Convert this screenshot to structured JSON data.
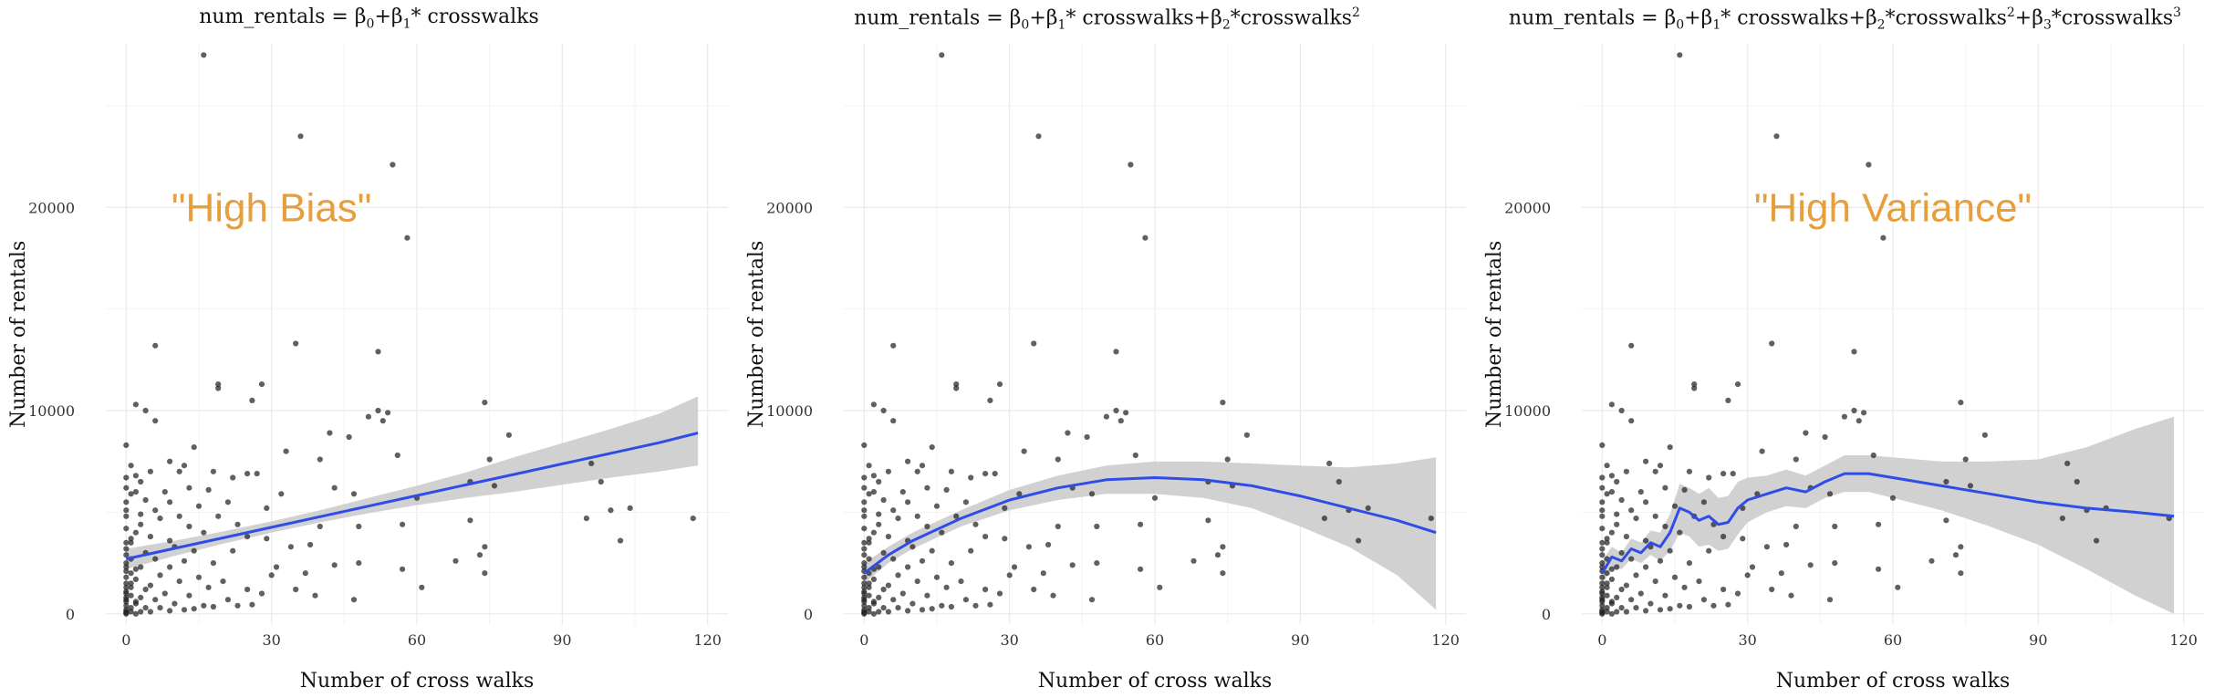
{
  "colors": {
    "line": "#2F4DE6",
    "ribbon": "#CFCFCF",
    "point": "#222222",
    "annotation": "#E69F3C",
    "grid": "#EBEBEB"
  },
  "chart_data": [
    {
      "type": "scatter",
      "title_parts": [
        "num_rentals = β",
        "0",
        "+β",
        "1",
        "* crosswalks"
      ],
      "xlabel": "Number of cross walks",
      "ylabel": "Number of rentals",
      "xlim": [
        0,
        120
      ],
      "ylim": [
        0,
        27500
      ],
      "xticks": [
        0,
        30,
        60,
        90,
        120
      ],
      "yticks": [
        0,
        10000,
        20000
      ],
      "grid": true,
      "annotation": {
        "text": "\"High Bias\"",
        "x": 30,
        "y": 20000
      },
      "fit": {
        "x": [
          0,
          10,
          20,
          30,
          40,
          50,
          60,
          70,
          80,
          90,
          100,
          110,
          118
        ],
        "y": [
          2700,
          3220,
          3740,
          4260,
          4780,
          5300,
          5820,
          6340,
          6860,
          7380,
          7900,
          8420,
          8900
        ],
        "lower": [
          2200,
          2850,
          3450,
          4000,
          4500,
          4950,
          5350,
          5700,
          6000,
          6350,
          6700,
          7000,
          7300
        ],
        "upper": [
          3200,
          3600,
          4050,
          4550,
          5100,
          5700,
          6300,
          6950,
          7700,
          8400,
          9100,
          9850,
          10700
        ]
      }
    },
    {
      "type": "scatter",
      "title_parts": [
        "num_rentals = β",
        "0",
        "+β",
        "1",
        "* crosswalks+β",
        "2",
        "*crosswalks",
        "2"
      ],
      "xlabel": "Number of cross walks",
      "ylabel": "Number of rentals",
      "xlim": [
        0,
        120
      ],
      "ylim": [
        0,
        27500
      ],
      "xticks": [
        0,
        30,
        60,
        90,
        120
      ],
      "yticks": [
        0,
        10000,
        20000
      ],
      "grid": true,
      "fit": {
        "x": [
          0,
          5,
          10,
          20,
          30,
          40,
          50,
          60,
          70,
          80,
          90,
          100,
          110,
          118
        ],
        "y": [
          2000,
          2900,
          3600,
          4700,
          5600,
          6200,
          6600,
          6700,
          6600,
          6300,
          5800,
          5200,
          4600,
          4000
        ],
        "lower": [
          1500,
          2500,
          3200,
          4300,
          5100,
          5600,
          5900,
          5900,
          5700,
          5200,
          4300,
          3300,
          1900,
          200
        ],
        "upper": [
          2500,
          3300,
          4000,
          5100,
          6100,
          6800,
          7300,
          7500,
          7500,
          7400,
          7300,
          7200,
          7400,
          7700
        ]
      }
    },
    {
      "type": "scatter",
      "title_parts": [
        "num_rentals = β",
        "0",
        "+β",
        "1",
        "* crosswalks+β",
        "2",
        "*crosswalks",
        "2",
        "+β",
        "3",
        "*crosswalks",
        "3"
      ],
      "xlabel": "Number of cross walks",
      "ylabel": "Number of rentals",
      "xlim": [
        0,
        120
      ],
      "ylim": [
        0,
        27500
      ],
      "xticks": [
        0,
        30,
        60,
        90,
        120
      ],
      "yticks": [
        0,
        10000,
        20000
      ],
      "grid": true,
      "annotation": {
        "text": "\"High Variance\"",
        "x": 60,
        "y": 20000
      },
      "fit": {
        "x": [
          0,
          2,
          4,
          6,
          8,
          10,
          12,
          14,
          16,
          18,
          20,
          22,
          24,
          26,
          28,
          30,
          34,
          38,
          42,
          46,
          50,
          55,
          60,
          70,
          80,
          90,
          100,
          110,
          118
        ],
        "y": [
          2000,
          2800,
          2600,
          3200,
          3000,
          3500,
          3300,
          4000,
          5200,
          5000,
          4600,
          4800,
          4400,
          4500,
          5200,
          5600,
          5900,
          6200,
          6000,
          6500,
          6900,
          6900,
          6700,
          6300,
          5900,
          5500,
          5200,
          5000,
          4800
        ],
        "lower": [
          1400,
          2300,
          2200,
          2700,
          2500,
          2900,
          2600,
          3100,
          4000,
          3800,
          3300,
          3400,
          3100,
          3200,
          3900,
          4500,
          5000,
          5300,
          5200,
          5700,
          6000,
          6000,
          5700,
          5100,
          4300,
          3400,
          2200,
          900,
          0
        ],
        "upper": [
          2600,
          3300,
          3000,
          3700,
          3500,
          4100,
          4000,
          4900,
          6400,
          6200,
          5900,
          6200,
          5700,
          5800,
          6500,
          6700,
          6800,
          7100,
          6800,
          7300,
          7800,
          7800,
          7700,
          7500,
          7500,
          7600,
          8200,
          9100,
          9700
        ]
      }
    }
  ],
  "points": [
    [
      16,
      27500
    ],
    [
      36,
      23500
    ],
    [
      55,
      22100
    ],
    [
      58,
      18500
    ],
    [
      35,
      13300
    ],
    [
      6,
      13200
    ],
    [
      52,
      12900
    ],
    [
      28,
      11300
    ],
    [
      19,
      11300
    ],
    [
      19,
      11100
    ],
    [
      26,
      10500
    ],
    [
      2,
      10300
    ],
    [
      74,
      10400
    ],
    [
      4,
      10000
    ],
    [
      52,
      10000
    ],
    [
      54,
      9900
    ],
    [
      50,
      9700
    ],
    [
      53,
      9500
    ],
    [
      6,
      9500
    ],
    [
      79,
      8800
    ],
    [
      42,
      8900
    ],
    [
      46,
      8700
    ],
    [
      0,
      8300
    ],
    [
      14,
      8200
    ],
    [
      33,
      8000
    ],
    [
      40,
      7600
    ],
    [
      56,
      7800
    ],
    [
      75,
      7600
    ],
    [
      96,
      7400
    ],
    [
      1,
      7300
    ],
    [
      12,
      7300
    ],
    [
      9,
      7500
    ],
    [
      11,
      7000
    ],
    [
      5,
      7000
    ],
    [
      2,
      6800
    ],
    [
      18,
      7000
    ],
    [
      22,
      6700
    ],
    [
      25,
      6900
    ],
    [
      27,
      6900
    ],
    [
      0,
      6700
    ],
    [
      3,
      6500
    ],
    [
      8,
      6000
    ],
    [
      13,
      6200
    ],
    [
      17,
      6100
    ],
    [
      2,
      6000
    ],
    [
      43,
      6200
    ],
    [
      47,
      5900
    ],
    [
      1,
      5900
    ],
    [
      32,
      5900
    ],
    [
      60,
      5700
    ],
    [
      71,
      6500
    ],
    [
      76,
      6300
    ],
    [
      98,
      6500
    ],
    [
      0,
      5500
    ],
    [
      4,
      5600
    ],
    [
      9,
      5500
    ],
    [
      15,
      5300
    ],
    [
      21,
      5500
    ],
    [
      29,
      5200
    ],
    [
      0,
      5100
    ],
    [
      6,
      5100
    ],
    [
      11,
      4800
    ],
    [
      19,
      4800
    ],
    [
      3,
      4900
    ],
    [
      7,
      4700
    ],
    [
      0,
      4800
    ],
    [
      23,
      4400
    ],
    [
      13,
      4300
    ],
    [
      40,
      4300
    ],
    [
      48,
      4300
    ],
    [
      57,
      4400
    ],
    [
      71,
      4600
    ],
    [
      95,
      4700
    ],
    [
      100,
      5100
    ],
    [
      104,
      5200
    ],
    [
      117,
      4700
    ],
    [
      0,
      4200
    ],
    [
      2,
      4000
    ],
    [
      16,
      4000
    ],
    [
      25,
      3800
    ],
    [
      5,
      3800
    ],
    [
      9,
      3600
    ],
    [
      29,
      3700
    ],
    [
      1,
      3500
    ],
    [
      10,
      3300
    ],
    [
      34,
      3300
    ],
    [
      38,
      3400
    ],
    [
      74,
      3300
    ],
    [
      102,
      3600
    ],
    [
      0,
      3200
    ],
    [
      4,
      3000
    ],
    [
      14,
      3100
    ],
    [
      22,
      3100
    ],
    [
      1,
      2700
    ],
    [
      6,
      2700
    ],
    [
      12,
      2600
    ],
    [
      18,
      2500
    ],
    [
      48,
      2500
    ],
    [
      68,
      2600
    ],
    [
      73,
      2900
    ],
    [
      0,
      2500
    ],
    [
      3,
      2300
    ],
    [
      9,
      2300
    ],
    [
      31,
      2300
    ],
    [
      43,
      2400
    ],
    [
      0,
      2100
    ],
    [
      7,
      1900
    ],
    [
      15,
      1800
    ],
    [
      30,
      1900
    ],
    [
      37,
      2000
    ],
    [
      57,
      2200
    ],
    [
      74,
      2000
    ],
    [
      2,
      1700
    ],
    [
      11,
      1600
    ],
    [
      20,
      1600
    ],
    [
      0,
      1500
    ],
    [
      5,
      1400
    ],
    [
      17,
      1300
    ],
    [
      25,
      1200
    ],
    [
      35,
      1200
    ],
    [
      61,
      1300
    ],
    [
      1,
      1300
    ],
    [
      0,
      1100
    ],
    [
      8,
      1000
    ],
    [
      13,
      900
    ],
    [
      28,
      1000
    ],
    [
      39,
      900
    ],
    [
      0,
      800
    ],
    [
      3,
      800
    ],
    [
      6,
      700
    ],
    [
      21,
      700
    ],
    [
      47,
      700
    ],
    [
      0,
      600
    ],
    [
      2,
      500
    ],
    [
      10,
      500
    ],
    [
      16,
      400
    ],
    [
      23,
      400
    ],
    [
      0,
      400
    ],
    [
      4,
      300
    ],
    [
      7,
      300
    ],
    [
      12,
      200
    ],
    [
      0,
      200
    ],
    [
      1,
      100
    ],
    [
      3,
      100
    ],
    [
      5,
      100
    ],
    [
      0,
      0
    ],
    [
      2,
      0
    ],
    [
      0,
      50
    ],
    [
      9,
      150
    ],
    [
      14,
      250
    ],
    [
      18,
      350
    ],
    [
      26,
      450
    ],
    [
      1,
      900
    ],
    [
      0,
      1800
    ],
    [
      4,
      1200
    ],
    [
      2,
      2200
    ],
    [
      0,
      2900
    ],
    [
      1,
      3700
    ],
    [
      3,
      4400
    ],
    [
      0,
      6200
    ],
    [
      0,
      3500
    ],
    [
      0,
      2300
    ],
    [
      1,
      1500
    ],
    [
      0,
      1000
    ],
    [
      2,
      600
    ],
    [
      1,
      300
    ],
    [
      0,
      100
    ],
    [
      0,
      700
    ],
    [
      1,
      2000
    ],
    [
      0,
      1300
    ]
  ]
}
